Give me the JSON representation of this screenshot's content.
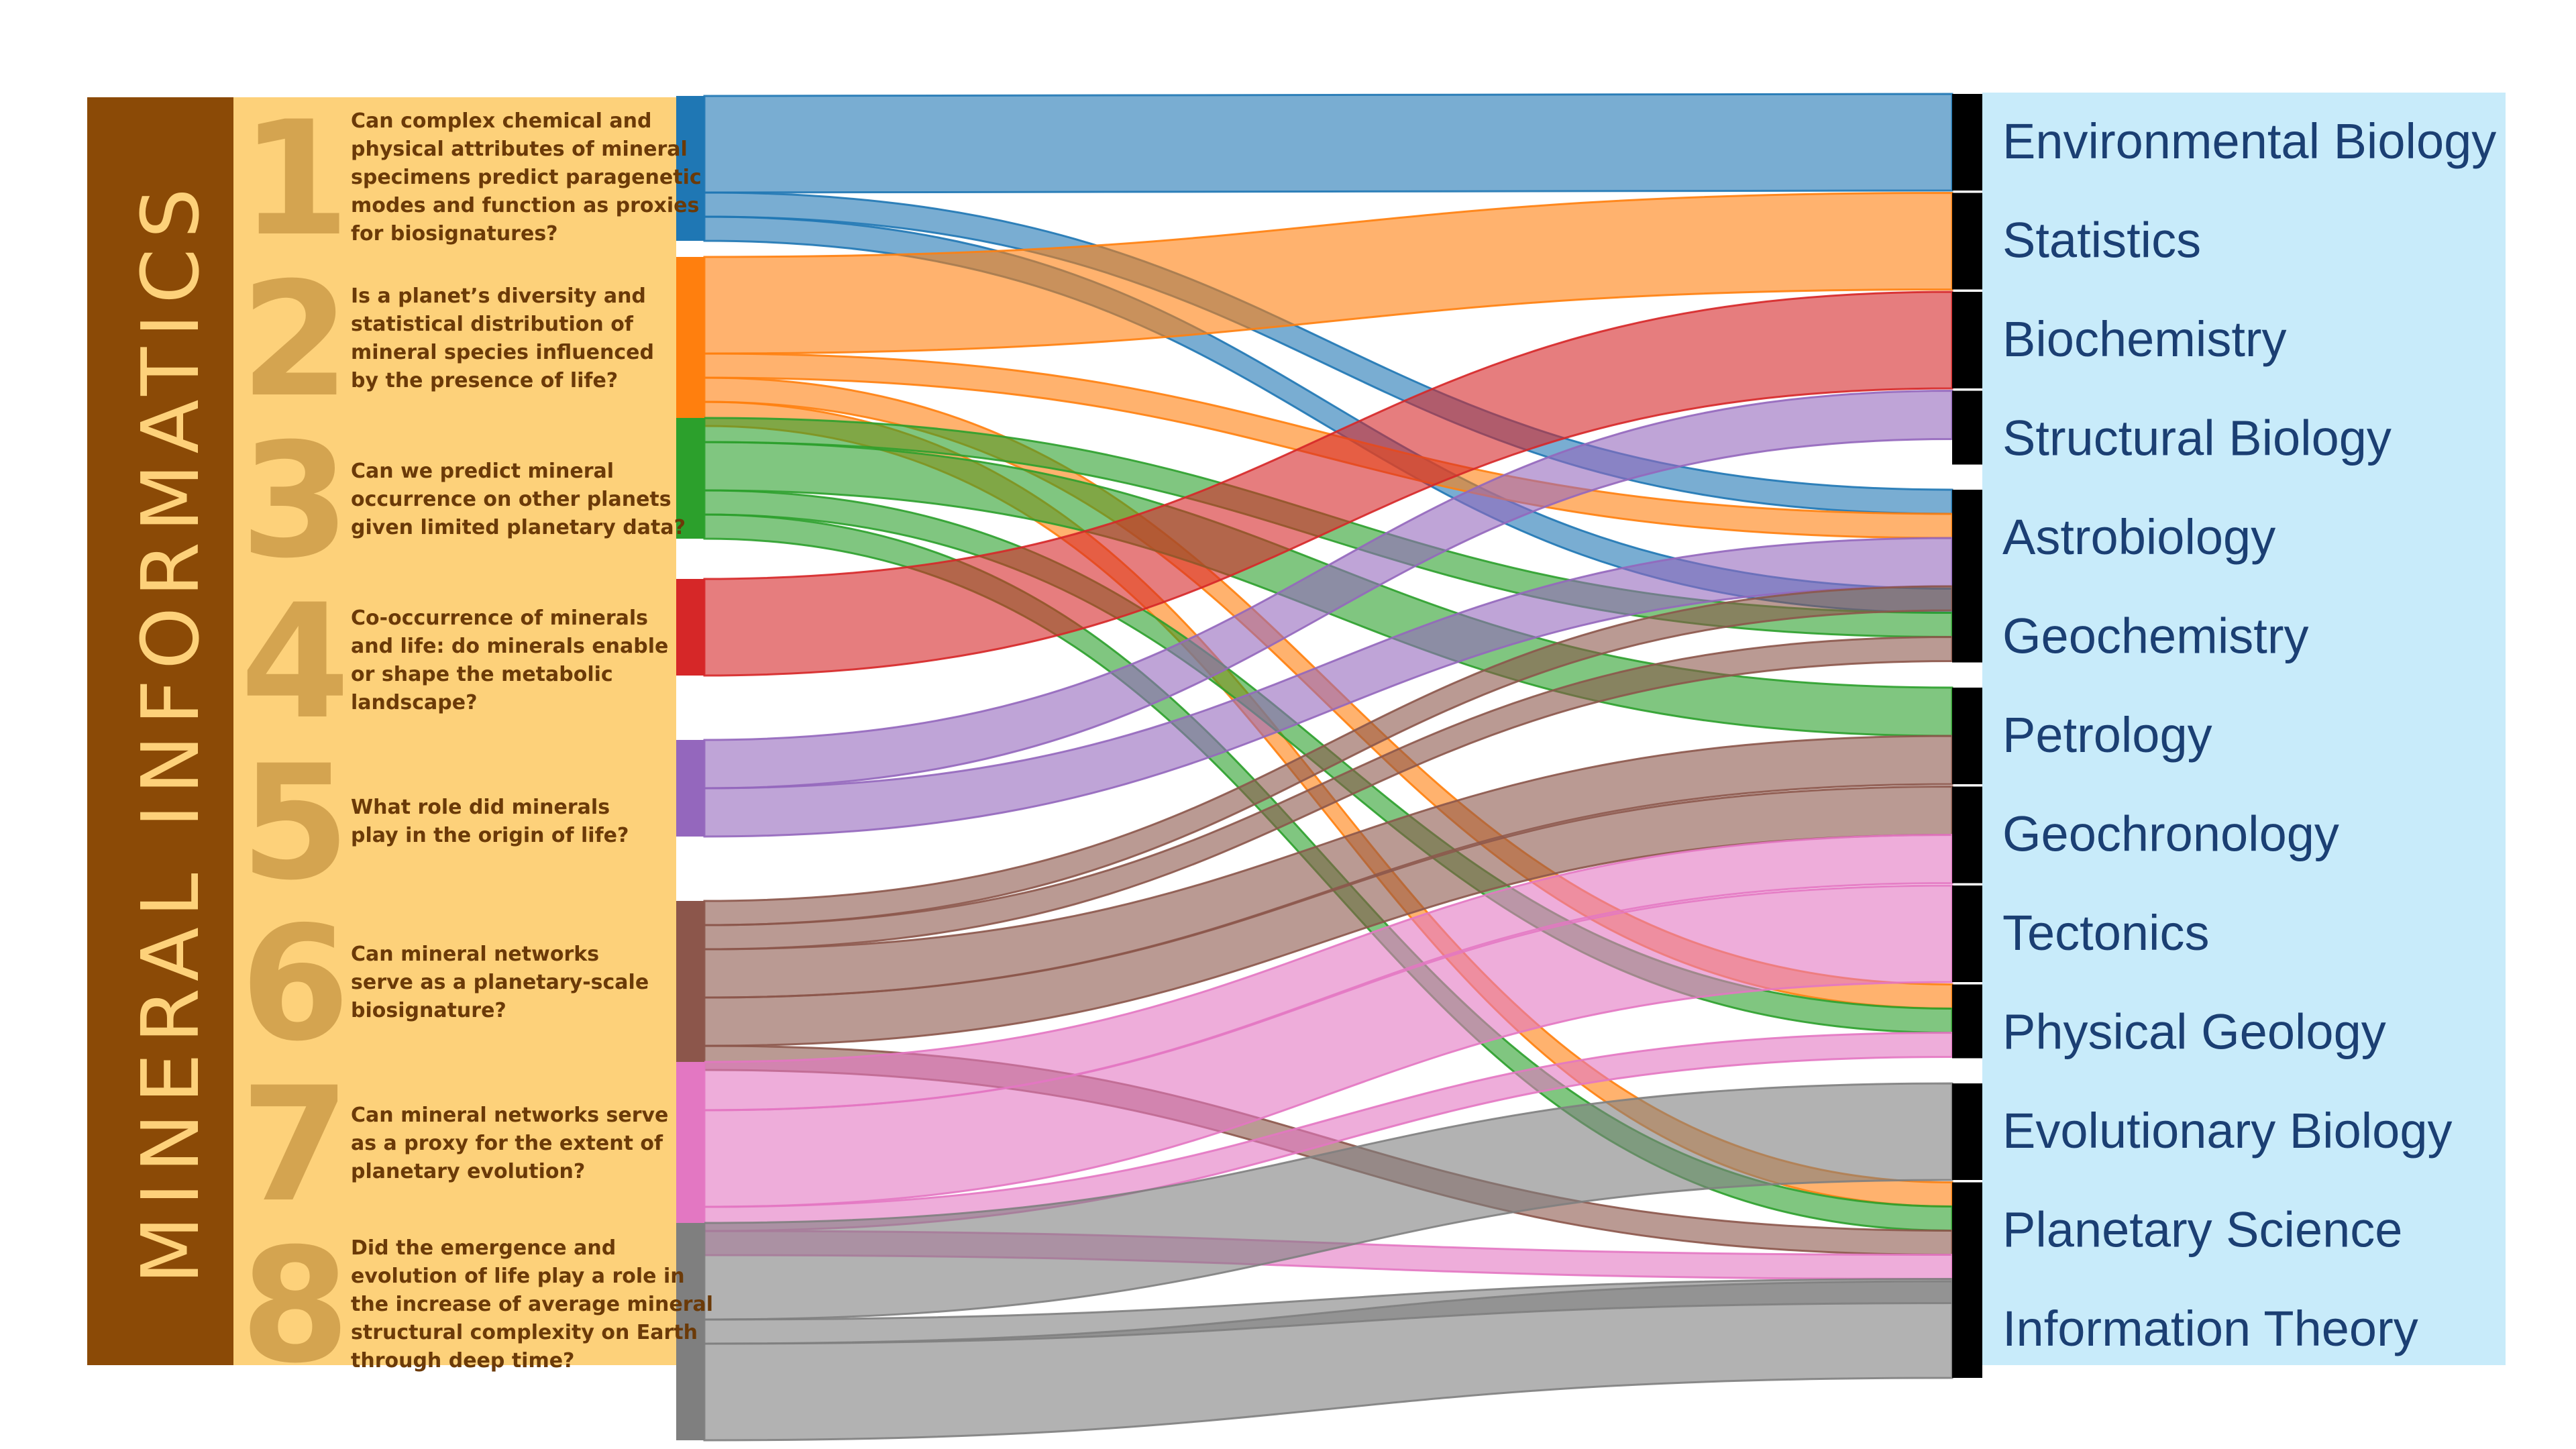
{
  "title": "MINERAL INFORMATICS",
  "colors": {
    "title_band": "#8b4a06",
    "question_bg": "#fdd17a",
    "number": "#d4a450",
    "question_text": "#6b3a08",
    "target_bg": "#c8ebfa",
    "target_text": "#1b3f73",
    "target_bar": "#000000"
  },
  "questions": [
    {
      "number": "1",
      "color": "#1f77b4",
      "lines": [
        "Can complex chemical and",
        "physical attributes of mineral",
        "specimens predict paragenetic",
        "modes and function as proxies",
        "for biosignatures?"
      ]
    },
    {
      "number": "2",
      "color": "#ff7f0e",
      "lines": [
        "Is a planet’s diversity and",
        "statistical distribution of",
        "mineral species influenced",
        "by the presence of life?"
      ]
    },
    {
      "number": "3",
      "color": "#2ca02c",
      "lines": [
        "Can we predict mineral",
        "occurrence on other planets",
        "given limited planetary data?"
      ]
    },
    {
      "number": "4",
      "color": "#d62728",
      "lines": [
        "Co-occurrence of minerals",
        "and life: do minerals enable",
        "or shape the metabolic",
        "landscape?"
      ]
    },
    {
      "number": "5",
      "color": "#9467bd",
      "lines": [
        "What role did minerals",
        "play in the origin of life?"
      ]
    },
    {
      "number": "6",
      "color": "#8c564b",
      "lines": [
        "Can mineral networks",
        "serve as a planetary-scale",
        "biosignature?"
      ]
    },
    {
      "number": "7",
      "color": "#e377c2",
      "lines": [
        "Can mineral networks serve",
        "as a proxy for the extent of",
        "planetary evolution?"
      ]
    },
    {
      "number": "8",
      "color": "#7f7f7f",
      "lines": [
        "Did the emergence and",
        "evolution of life play a role in",
        "the increase of average mineral",
        "structural complexity on Earth",
        "through deep time?"
      ]
    }
  ],
  "targets": [
    "Environmental Biology",
    "Statistics",
    "Biochemistry",
    "Structural Biology",
    "Astrobiology",
    "Geochemistry",
    "Petrology",
    "Geochronology",
    "Tectonics",
    "Physical Geology",
    "Evolutionary Biology",
    "Planetary Science",
    "Information Theory"
  ],
  "flows": [
    {
      "source": 1,
      "target": "Environmental Biology",
      "value": 2
    },
    {
      "source": 1,
      "target": "Astrobiology",
      "value": 0.5
    },
    {
      "source": 1,
      "target": "Geochemistry",
      "value": 0.5
    },
    {
      "source": 2,
      "target": "Statistics",
      "value": 2
    },
    {
      "source": 2,
      "target": "Astrobiology",
      "value": 0.5
    },
    {
      "source": 2,
      "target": "Physical Geology",
      "value": 0.5
    },
    {
      "source": 2,
      "target": "Planetary Science",
      "value": 0.5
    },
    {
      "source": 3,
      "target": "Geochemistry",
      "value": 0.5
    },
    {
      "source": 3,
      "target": "Petrology",
      "value": 1
    },
    {
      "source": 3,
      "target": "Physical Geology",
      "value": 0.5
    },
    {
      "source": 3,
      "target": "Planetary Science",
      "value": 0.5
    },
    {
      "source": 4,
      "target": "Biochemistry",
      "value": 2
    },
    {
      "source": 5,
      "target": "Structural Biology",
      "value": 1
    },
    {
      "source": 5,
      "target": "Astrobiology",
      "value": 1
    },
    {
      "source": 6,
      "target": "Astrobiology",
      "value": 0.5
    },
    {
      "source": 6,
      "target": "Geochemistry",
      "value": 0.5
    },
    {
      "source": 6,
      "target": "Petrology",
      "value": 1
    },
    {
      "source": 6,
      "target": "Geochronology",
      "value": 1
    },
    {
      "source": 6,
      "target": "Planetary Science",
      "value": 0.5
    },
    {
      "source": 7,
      "target": "Geochronology",
      "value": 1
    },
    {
      "source": 7,
      "target": "Tectonics",
      "value": 2
    },
    {
      "source": 7,
      "target": "Physical Geology",
      "value": 0.5
    },
    {
      "source": 7,
      "target": "Planetary Science",
      "value": 0.5
    },
    {
      "source": 8,
      "target": "Evolutionary Biology",
      "value": 2
    },
    {
      "source": 8,
      "target": "Planetary Science",
      "value": 0.5
    },
    {
      "source": 8,
      "target": "Information Theory",
      "value": 2
    }
  ]
}
